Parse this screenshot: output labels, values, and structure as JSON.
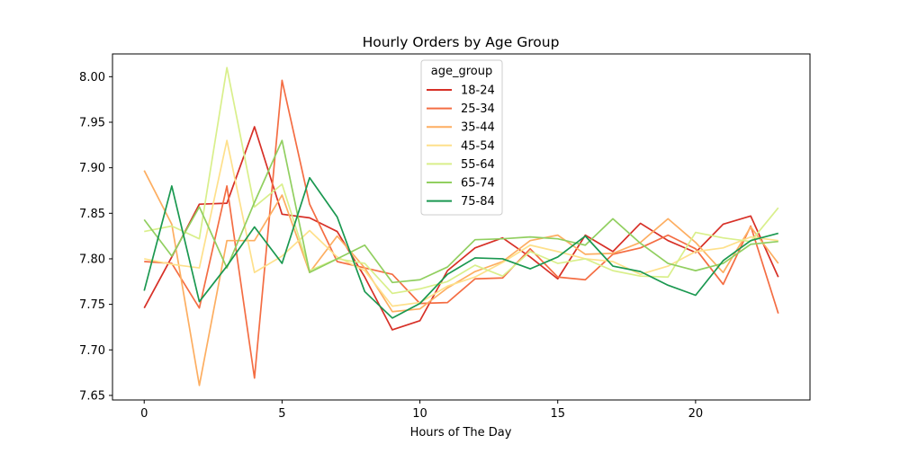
{
  "chart_data": {
    "type": "line",
    "title": "Hourly Orders by Age Group",
    "xlabel": "Hours of The Day",
    "ylabel": "",
    "xlim": [
      -1.15,
      24.15
    ],
    "ylim": [
      7.645,
      8.025
    ],
    "x_ticks": [
      0,
      5,
      10,
      15,
      20
    ],
    "y_ticks": [
      7.65,
      7.7,
      7.75,
      7.8,
      7.85,
      7.9,
      7.95,
      8.0
    ],
    "x_tick_labels": [
      "0",
      "5",
      "10",
      "15",
      "20"
    ],
    "y_tick_labels": [
      "7.65",
      "7.70",
      "7.75",
      "7.80",
      "7.85",
      "7.90",
      "7.95",
      "8.00"
    ],
    "grid": false,
    "legend": {
      "title": "age_group",
      "placement": "top-center"
    },
    "x": [
      0,
      1,
      2,
      3,
      4,
      5,
      6,
      7,
      8,
      9,
      10,
      11,
      12,
      13,
      14,
      15,
      16,
      17,
      18,
      19,
      20,
      21,
      22,
      23
    ],
    "series": [
      {
        "name": "18-24",
        "color": "#d73027",
        "values": [
          7.746,
          7.802,
          7.86,
          7.861,
          7.945,
          7.849,
          7.845,
          7.83,
          7.78,
          7.722,
          7.732,
          7.787,
          7.812,
          7.823,
          7.802,
          7.778,
          7.826,
          7.808,
          7.839,
          7.82,
          7.807,
          7.838,
          7.847,
          7.78
        ]
      },
      {
        "name": "25-34",
        "color": "#f46d43",
        "values": [
          7.797,
          7.795,
          7.746,
          7.88,
          7.669,
          7.996,
          7.86,
          7.797,
          7.79,
          7.783,
          7.751,
          7.752,
          7.778,
          7.779,
          7.811,
          7.78,
          7.777,
          7.805,
          7.812,
          7.826,
          7.811,
          7.772,
          7.836,
          7.74
        ]
      },
      {
        "name": "35-44",
        "color": "#fdae61",
        "values": [
          7.897,
          7.838,
          7.661,
          7.82,
          7.82,
          7.87,
          7.785,
          7.825,
          7.79,
          7.742,
          7.745,
          7.768,
          7.786,
          7.797,
          7.82,
          7.826,
          7.805,
          7.806,
          7.818,
          7.844,
          7.818,
          7.785,
          7.835,
          7.795
        ]
      },
      {
        "name": "45-54",
        "color": "#fee08b",
        "values": [
          7.8,
          7.794,
          7.79,
          7.93,
          7.785,
          7.803,
          7.831,
          7.802,
          7.787,
          7.748,
          7.752,
          7.77,
          7.78,
          7.796,
          7.815,
          7.808,
          7.8,
          7.797,
          7.783,
          7.792,
          7.808,
          7.812,
          7.824,
          7.82
        ]
      },
      {
        "name": "55-64",
        "color": "#d9ef8b",
        "values": [
          7.83,
          7.836,
          7.822,
          8.01,
          7.857,
          7.882,
          7.787,
          7.8,
          7.795,
          7.762,
          7.767,
          7.775,
          7.793,
          7.781,
          7.808,
          7.795,
          7.8,
          7.787,
          7.781,
          7.78,
          7.829,
          7.823,
          7.819,
          7.856
        ]
      },
      {
        "name": "65-74",
        "color": "#91cf60",
        "values": [
          7.843,
          7.803,
          7.857,
          7.79,
          7.862,
          7.93,
          7.785,
          7.8,
          7.815,
          7.774,
          7.777,
          7.791,
          7.821,
          7.822,
          7.824,
          7.822,
          7.815,
          7.844,
          7.817,
          7.795,
          7.787,
          7.795,
          7.816,
          7.819
        ]
      },
      {
        "name": "75-84",
        "color": "#1a9850",
        "values": [
          7.765,
          7.88,
          7.753,
          7.792,
          7.835,
          7.795,
          7.889,
          7.846,
          7.764,
          7.735,
          7.751,
          7.783,
          7.801,
          7.8,
          7.789,
          7.802,
          7.825,
          7.792,
          7.786,
          7.771,
          7.76,
          7.798,
          7.82,
          7.828
        ]
      }
    ]
  }
}
